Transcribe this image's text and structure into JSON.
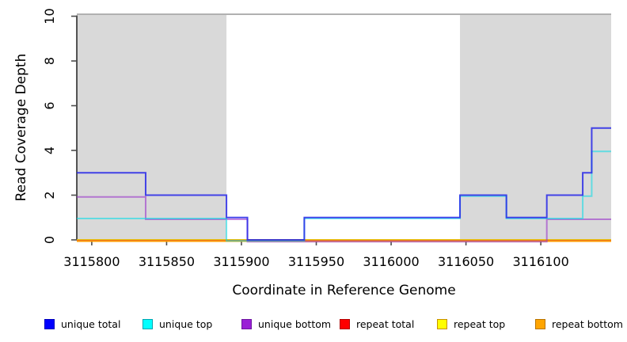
{
  "chart_data": {
    "type": "line",
    "subtype": "step-coverage",
    "title": "",
    "xlabel": "Coordinate in Reference Genome",
    "ylabel": "Read Coverage Depth",
    "xlim": [
      3115790,
      3116147
    ],
    "ylim": [
      0,
      10
    ],
    "x_ticks": [
      3115800,
      3115850,
      3115900,
      3115950,
      3116000,
      3116050,
      3116100
    ],
    "y_ticks": [
      0,
      2,
      4,
      6,
      8,
      10
    ],
    "grid": false,
    "legend_position": "bottom",
    "shaded_regions": [
      {
        "x0": 3115790,
        "x1": 3115890,
        "color": "#d9d9d9"
      },
      {
        "x0": 3116046,
        "x1": 3116147,
        "color": "#d9d9d9"
      }
    ],
    "breakpoints": [
      3115790,
      3115836,
      3115890,
      3115904,
      3115942,
      3116046,
      3116077,
      3116104,
      3116128,
      3116134,
      3116147
    ],
    "series": [
      {
        "name": "unique total",
        "color": "#2727e8",
        "values": [
          3,
          2,
          1,
          0,
          1,
          2,
          1,
          2,
          3,
          5
        ]
      },
      {
        "name": "unique top",
        "color": "#00dde8",
        "values": [
          1,
          1,
          0,
          0,
          1,
          2,
          1,
          1,
          2,
          4
        ]
      },
      {
        "name": "unique bottom",
        "color": "#9933cc",
        "values": [
          2,
          1,
          1,
          0,
          0,
          0,
          0,
          1,
          1,
          1
        ]
      },
      {
        "name": "repeat total",
        "color": "#dd1c3c",
        "values": [
          0,
          0,
          0,
          0,
          0,
          0,
          0,
          0,
          0,
          0
        ]
      },
      {
        "name": "repeat top",
        "color": "#f5f500",
        "values": [
          0,
          0,
          0,
          0,
          0,
          0,
          0,
          0,
          0,
          0
        ]
      },
      {
        "name": "repeat bottom",
        "color": "#ff9d00",
        "values": [
          0,
          0,
          0,
          0,
          0,
          0,
          0,
          0,
          0,
          0
        ]
      }
    ],
    "legend": [
      {
        "label": "unique total",
        "fill": "#0000ff",
        "border": "#0000bb"
      },
      {
        "label": "unique top",
        "fill": "#00ffff",
        "border": "#00a5b0"
      },
      {
        "label": "unique bottom",
        "fill": "#9a1fd6",
        "border": "#6d16a0"
      },
      {
        "label": "repeat total",
        "fill": "#ff0000",
        "border": "#b30000"
      },
      {
        "label": "repeat top",
        "fill": "#ffff00",
        "border": "#c89000"
      },
      {
        "label": "repeat bottom",
        "fill": "#ffa500",
        "border": "#b87400"
      }
    ]
  }
}
